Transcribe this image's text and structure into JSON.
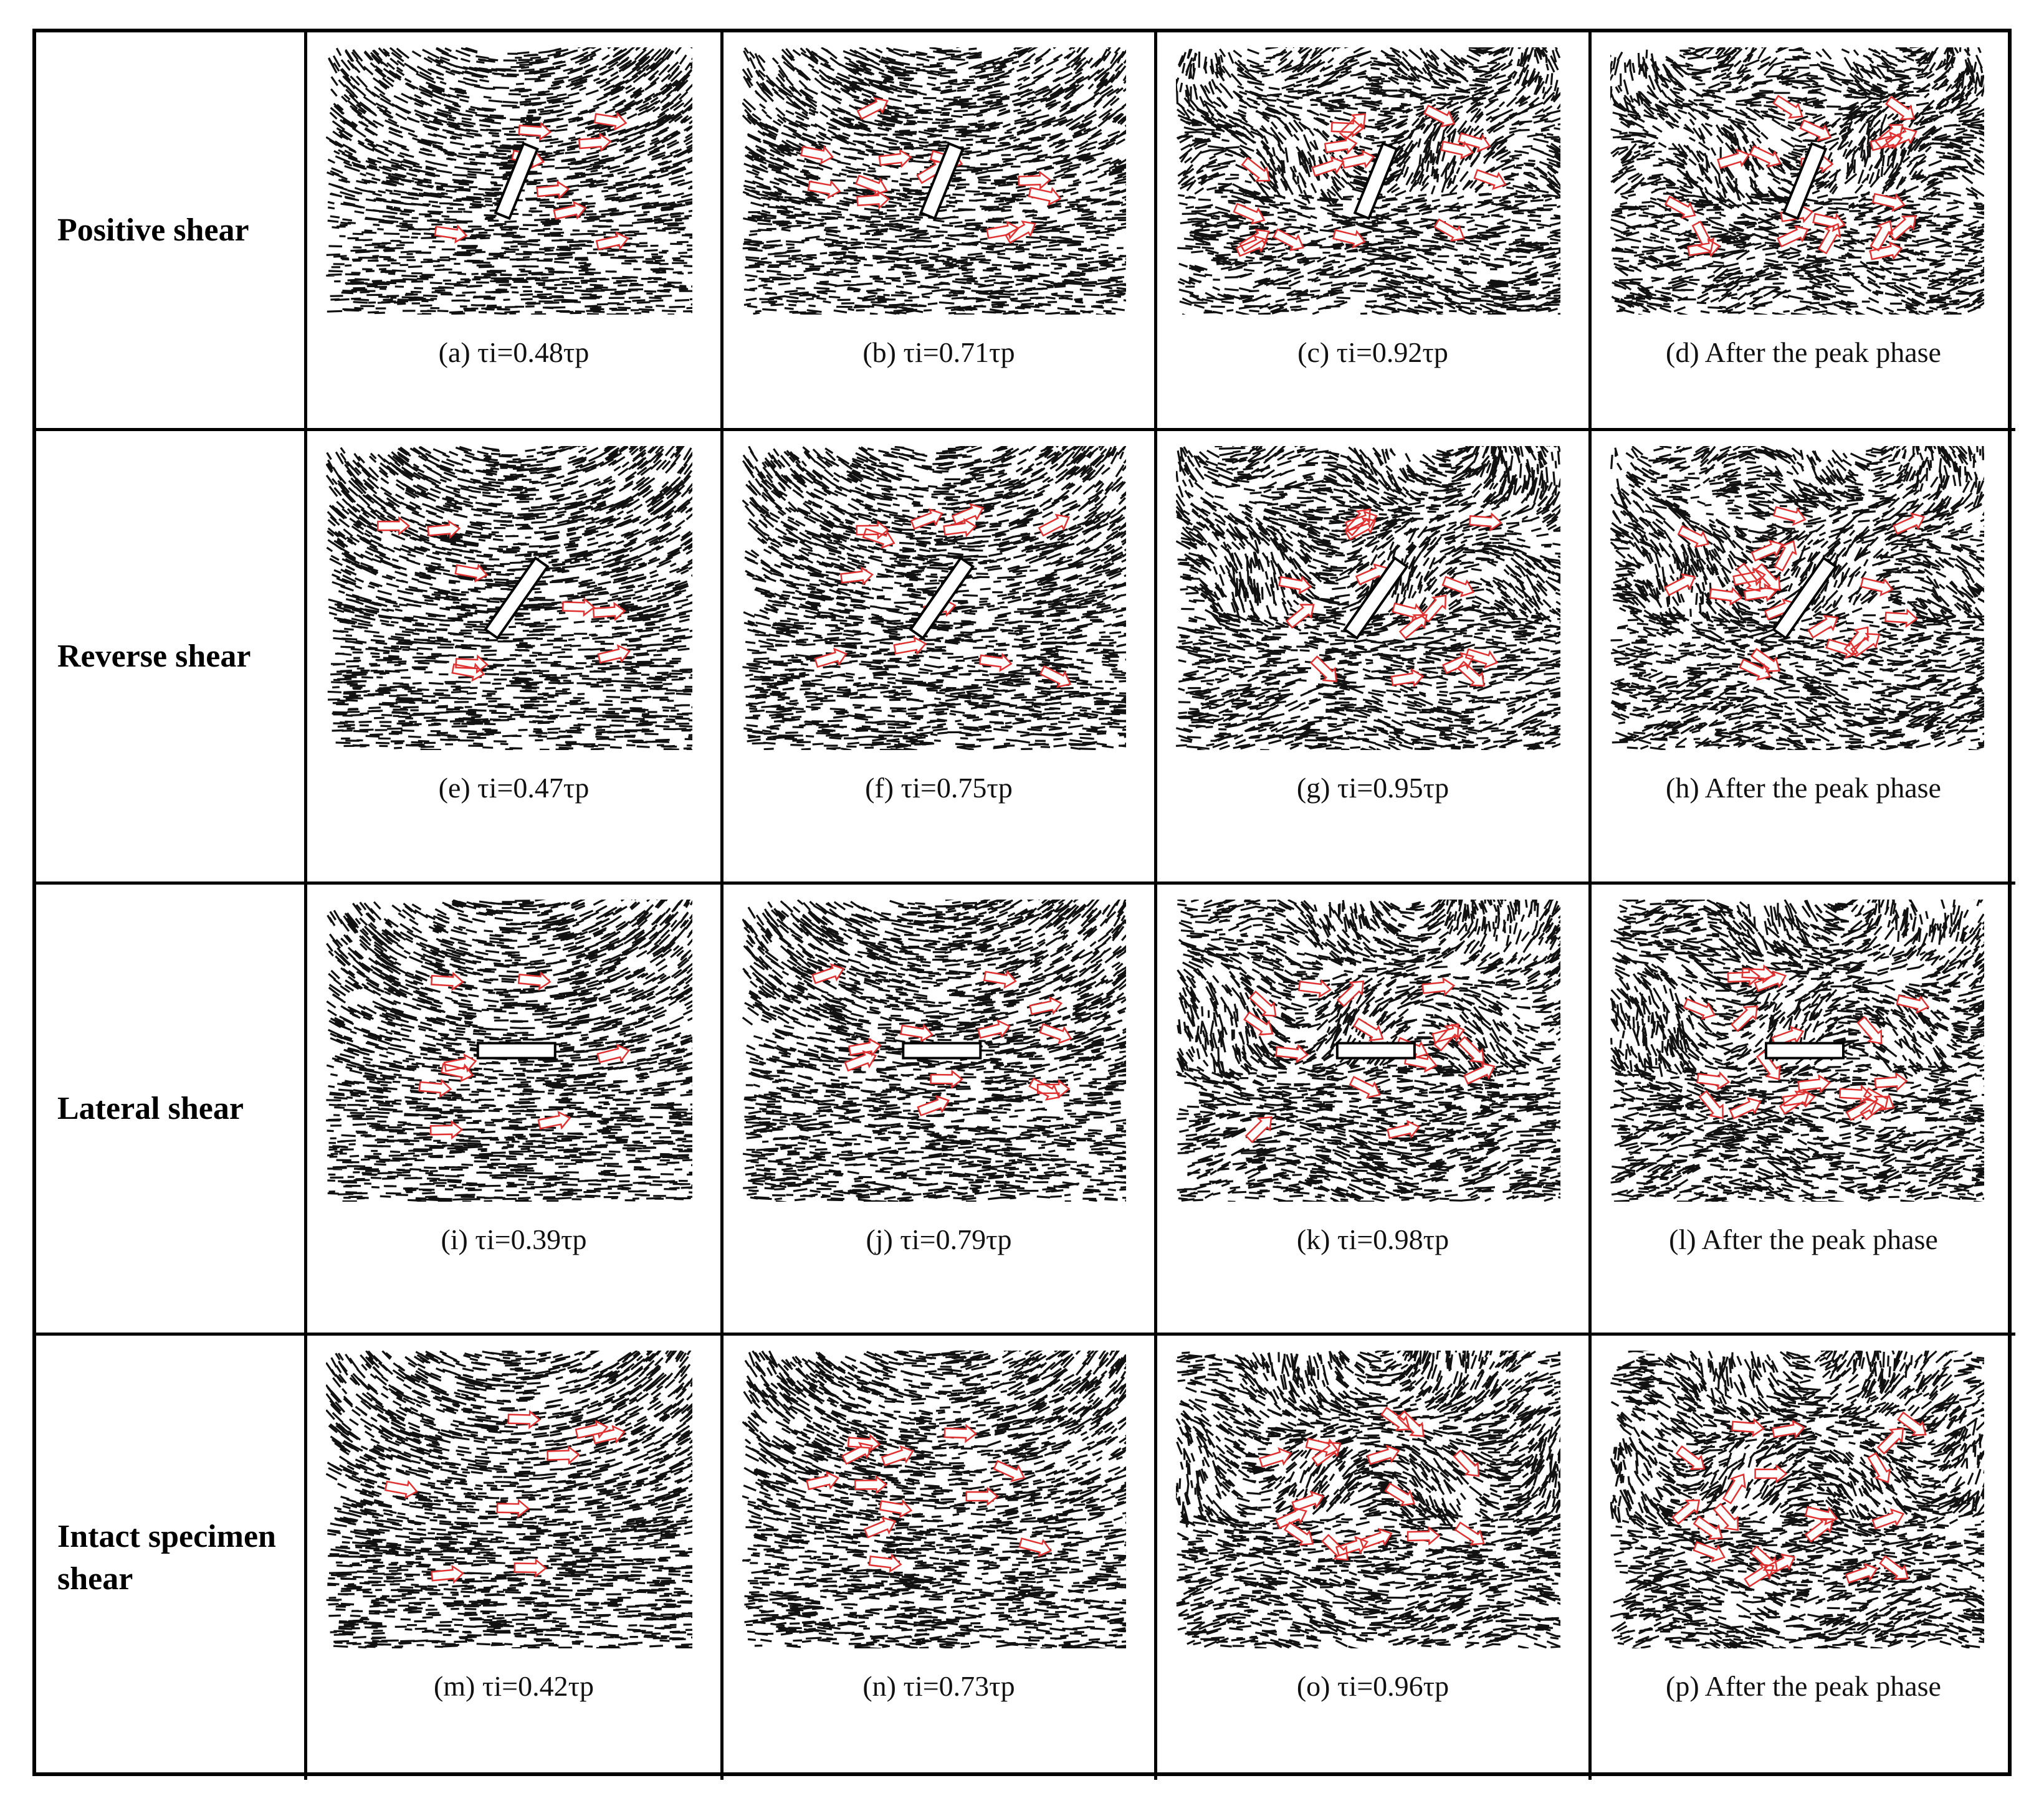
{
  "rows": [
    {
      "label": "Positive shear",
      "panels": [
        "(a) τi=0.48τp",
        "(b) τi=0.71τp",
        "(c) τi=0.92τp",
        "(d) After the peak phase"
      ]
    },
    {
      "label": "Reverse shear",
      "panels": [
        "(e) τi=0.47τp",
        "(f) τi=0.75τp",
        "(g) τi=0.95τp",
        "(h) After the peak phase"
      ]
    },
    {
      "label": "Lateral shear",
      "panels": [
        "(i) τi=0.39τp",
        "(j) τi=0.79τp",
        "(k) τi=0.98τp",
        "(l) After the peak phase"
      ]
    },
    {
      "label": "Intact specimen shear",
      "panels": [
        "(m) τi=0.42τp",
        "(n) τi=0.73τp",
        "(o) τi=0.96τp",
        "(p) After the peak phase"
      ]
    }
  ]
}
